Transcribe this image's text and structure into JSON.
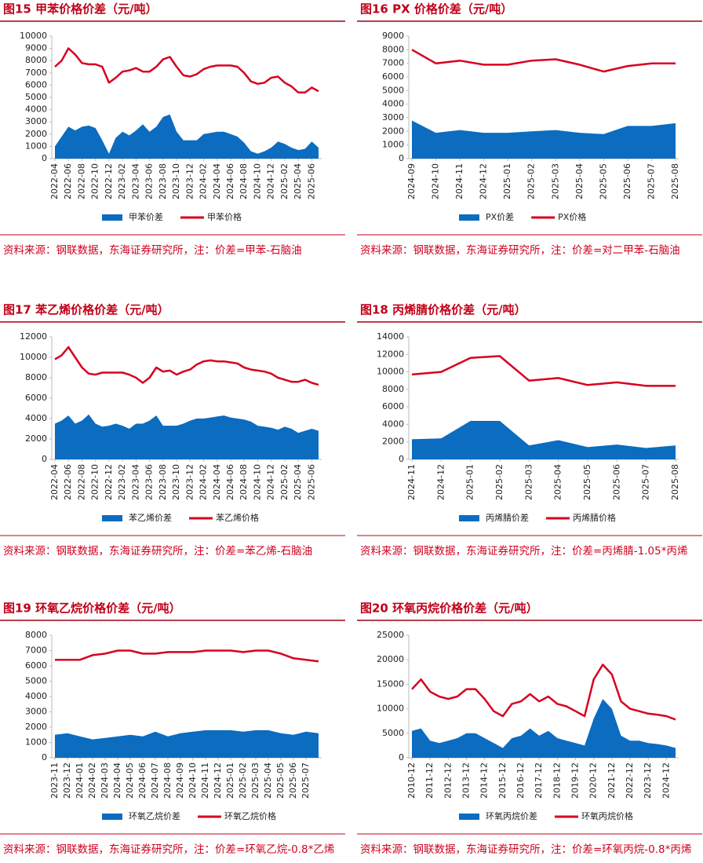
{
  "chart_data": [
    {
      "type": "line",
      "title": "图15  甲苯价格价差（元/吨）",
      "source": "资料来源：钢联数据，东海证券研究所，注：价差=甲苯-石脑油",
      "categories": [
        "2022-04",
        "2022-05",
        "2022-06",
        "2022-07",
        "2022-08",
        "2022-09",
        "2022-10",
        "2022-11",
        "2022-12",
        "2023-01",
        "2023-02",
        "2023-03",
        "2023-04",
        "2023-05",
        "2023-06",
        "2023-07",
        "2023-08",
        "2023-09",
        "2023-10",
        "2023-11",
        "2023-12",
        "2024-01",
        "2024-02",
        "2024-03",
        "2024-04",
        "2024-05",
        "2024-06",
        "2024-07",
        "2024-08",
        "2024-09",
        "2024-10",
        "2024-11",
        "2024-12",
        "2025-01",
        "2025-02",
        "2025-03",
        "2025-04",
        "2025-05",
        "2025-06",
        "2025-07"
      ],
      "xticks": [
        "2022-04",
        "2022-06",
        "2022-08",
        "2022-10",
        "2022-12",
        "2023-02",
        "2023-04",
        "2023-06",
        "2023-08",
        "2023-10",
        "2023-12",
        "2024-02",
        "2024-04",
        "2024-06",
        "2024-08",
        "2024-10",
        "2024-12",
        "2025-02",
        "2025-04",
        "2025-06"
      ],
      "series": [
        {
          "name": "甲苯价差",
          "color": "#0b6cc0",
          "fill": true,
          "values": [
            1000,
            1800,
            2600,
            2300,
            2600,
            2700,
            2500,
            1500,
            400,
            1700,
            2200,
            1900,
            2300,
            2800,
            2200,
            2600,
            3400,
            3600,
            2200,
            1500,
            1500,
            1500,
            2000,
            2100,
            2200,
            2200,
            2000,
            1800,
            1300,
            600,
            400,
            600,
            900,
            1400,
            1200,
            900,
            700,
            800,
            1400,
            900
          ]
        },
        {
          "name": "甲苯价格",
          "color": "#d7001f",
          "fill": false,
          "values": [
            7500,
            8000,
            9000,
            8500,
            7800,
            7700,
            7700,
            7500,
            6200,
            6600,
            7100,
            7200,
            7400,
            7100,
            7100,
            7500,
            8100,
            8300,
            7500,
            6800,
            6700,
            6900,
            7300,
            7500,
            7600,
            7600,
            7600,
            7500,
            7000,
            6300,
            6100,
            6200,
            6600,
            6700,
            6200,
            5900,
            5400,
            5400,
            5800,
            5500
          ]
        }
      ],
      "ylim": [
        0,
        10000
      ],
      "yticks": [
        0,
        1000,
        2000,
        3000,
        4000,
        5000,
        6000,
        7000,
        8000,
        9000,
        10000
      ]
    },
    {
      "type": "line",
      "title": "图16  PX 价格价差（元/吨）",
      "source": "资料来源：钢联数据，东海证券研究所，注：价差=对二甲苯-石脑油",
      "categories": [
        "2024-09",
        "2024-10",
        "2024-11",
        "2024-12",
        "2025-01",
        "2025-02",
        "2025-03",
        "2025-04",
        "2025-05",
        "2025-06",
        "2025-07",
        "2025-08"
      ],
      "xticks": [
        "2024-09",
        "2024-10",
        "2024-11",
        "2024-12",
        "2025-01",
        "2025-02",
        "2025-03",
        "2025-04",
        "2025-05",
        "2025-06",
        "2025-07",
        "2025-08"
      ],
      "series": [
        {
          "name": "PX价差",
          "color": "#0b6cc0",
          "fill": true,
          "values": [
            2800,
            1900,
            2100,
            1900,
            1900,
            2000,
            2100,
            1900,
            1800,
            2400,
            2400,
            2600
          ]
        },
        {
          "name": "PX价格",
          "color": "#d7001f",
          "fill": false,
          "values": [
            8000,
            7000,
            7200,
            6900,
            6900,
            7200,
            7300,
            6900,
            6400,
            6800,
            7000,
            7000
          ]
        }
      ],
      "ylim": [
        0,
        9000
      ],
      "yticks": [
        0,
        1000,
        2000,
        3000,
        4000,
        5000,
        6000,
        7000,
        8000,
        9000
      ]
    },
    {
      "type": "line",
      "title": "图17  苯乙烯价格价差（元/吨）",
      "source": "资料来源：钢联数据，东海证券研究所，注：价差=苯乙烯-石脑油",
      "categories": [
        "2022-04",
        "2022-05",
        "2022-06",
        "2022-07",
        "2022-08",
        "2022-09",
        "2022-10",
        "2022-11",
        "2022-12",
        "2023-01",
        "2023-02",
        "2023-03",
        "2023-04",
        "2023-05",
        "2023-06",
        "2023-07",
        "2023-08",
        "2023-09",
        "2023-10",
        "2023-11",
        "2023-12",
        "2024-01",
        "2024-02",
        "2024-03",
        "2024-04",
        "2024-05",
        "2024-06",
        "2024-07",
        "2024-08",
        "2024-09",
        "2024-10",
        "2024-11",
        "2024-12",
        "2025-01",
        "2025-02",
        "2025-03",
        "2025-04",
        "2025-05",
        "2025-06",
        "2025-07"
      ],
      "xticks": [
        "2022-04",
        "2022-06",
        "2022-08",
        "2022-10",
        "2022-12",
        "2023-02",
        "2023-04",
        "2023-06",
        "2023-08",
        "2023-10",
        "2023-12",
        "2024-02",
        "2024-04",
        "2024-06",
        "2024-08",
        "2024-10",
        "2024-12",
        "2025-02",
        "2025-04",
        "2025-06"
      ],
      "series": [
        {
          "name": "苯乙烯价差",
          "color": "#0b6cc0",
          "fill": true,
          "values": [
            3500,
            3800,
            4300,
            3500,
            3800,
            4400,
            3500,
            3200,
            3300,
            3500,
            3300,
            3000,
            3500,
            3500,
            3800,
            4300,
            3300,
            3300,
            3300,
            3500,
            3800,
            4000,
            4000,
            4100,
            4200,
            4300,
            4100,
            4000,
            3900,
            3700,
            3300,
            3200,
            3100,
            2900,
            3200,
            3000,
            2600,
            2800,
            3000,
            2800
          ]
        },
        {
          "name": "苯乙烯价格",
          "color": "#d7001f",
          "fill": false,
          "values": [
            9800,
            10200,
            11000,
            10000,
            9000,
            8400,
            8300,
            8500,
            8500,
            8500,
            8500,
            8300,
            8000,
            7500,
            8000,
            9000,
            8600,
            8700,
            8300,
            8600,
            8800,
            9300,
            9600,
            9700,
            9600,
            9600,
            9500,
            9400,
            9000,
            8800,
            8700,
            8600,
            8400,
            8000,
            7800,
            7600,
            7600,
            7800,
            7500,
            7300
          ]
        }
      ],
      "ylim": [
        0,
        12000
      ],
      "yticks": [
        0,
        2000,
        4000,
        6000,
        8000,
        10000,
        12000
      ]
    },
    {
      "type": "line",
      "title": "图18  丙烯腈价格价差（元/吨）",
      "source": "资料来源：钢联数据，东海证券研究所，注：价差=丙烯腈-1.05*丙烯",
      "categories": [
        "2024-11",
        "2024-12",
        "2025-01",
        "2025-02",
        "2025-03",
        "2025-04",
        "2025-05",
        "2025-06",
        "2025-07",
        "2025-08"
      ],
      "xticks": [
        "2024-11",
        "2024-12",
        "2025-01",
        "2025-02",
        "2025-03",
        "2025-04",
        "2025-05",
        "2025-06",
        "2025-07",
        "2025-08"
      ],
      "series": [
        {
          "name": "丙烯腈价差",
          "color": "#0b6cc0",
          "fill": true,
          "values": [
            2300,
            2400,
            4400,
            4400,
            1600,
            2200,
            1400,
            1700,
            1300,
            1600
          ]
        },
        {
          "name": "丙烯腈价格",
          "color": "#d7001f",
          "fill": false,
          "values": [
            9700,
            10000,
            11600,
            11800,
            9000,
            9300,
            8500,
            8800,
            8400,
            8400
          ]
        }
      ],
      "ylim": [
        0,
        14000
      ],
      "yticks": [
        0,
        2000,
        4000,
        6000,
        8000,
        10000,
        12000,
        14000
      ]
    },
    {
      "type": "line",
      "title": "图19  环氧乙烷价格价差（元/吨）",
      "source": "资料来源：钢联数据，东海证券研究所，注：价差=环氧乙烷-0.8*乙烯",
      "categories": [
        "2023-11",
        "2023-12",
        "2024-01",
        "2024-02",
        "2024-03",
        "2024-04",
        "2024-05",
        "2024-06",
        "2024-07",
        "2024-08",
        "2024-09",
        "2024-10",
        "2024-11",
        "2024-12",
        "2025-01",
        "2025-02",
        "2025-03",
        "2025-04",
        "2025-05",
        "2025-06",
        "2025-07",
        "2025-08"
      ],
      "xticks": [
        "2023-11",
        "2023-12",
        "2024-01",
        "2024-02",
        "2024-03",
        "2024-04",
        "2024-05",
        "2024-06",
        "2024-07",
        "2024-08",
        "2024-09",
        "2024-10",
        "2024-11",
        "2024-12",
        "2025-01",
        "2025-02",
        "2025-03",
        "2025-04",
        "2025-05",
        "2025-06",
        "2025-07"
      ],
      "series": [
        {
          "name": "环氧乙烷价差",
          "color": "#0b6cc0",
          "fill": true,
          "values": [
            1500,
            1600,
            1400,
            1200,
            1300,
            1400,
            1500,
            1400,
            1700,
            1400,
            1600,
            1700,
            1800,
            1800,
            1800,
            1700,
            1800,
            1800,
            1600,
            1500,
            1700,
            1600
          ]
        },
        {
          "name": "环氧乙烷价格",
          "color": "#d7001f",
          "fill": false,
          "values": [
            6400,
            6400,
            6400,
            6700,
            6800,
            7000,
            7000,
            6800,
            6800,
            6900,
            6900,
            6900,
            7000,
            7000,
            7000,
            6900,
            7000,
            7000,
            6800,
            6500,
            6400,
            6300
          ]
        }
      ],
      "ylim": [
        0,
        8000
      ],
      "yticks": [
        0,
        1000,
        2000,
        3000,
        4000,
        5000,
        6000,
        7000,
        8000
      ]
    },
    {
      "type": "line",
      "title": "图20  环氧丙烷价格价差（元/吨）",
      "source": "资料来源：钢联数据，东海证券研究所，注：价差=环氧丙烷-0.8*丙烯",
      "categories": [
        "2010-12",
        "2011-06",
        "2011-12",
        "2012-06",
        "2012-12",
        "2013-06",
        "2013-12",
        "2014-06",
        "2014-12",
        "2015-06",
        "2015-12",
        "2016-06",
        "2016-12",
        "2017-06",
        "2017-12",
        "2018-06",
        "2018-12",
        "2019-06",
        "2019-12",
        "2020-06",
        "2020-12",
        "2021-06",
        "2021-12",
        "2022-06",
        "2022-12",
        "2023-06",
        "2023-12",
        "2024-06",
        "2024-12",
        "2025-06"
      ],
      "xticks": [
        "2010-12",
        "2011-12",
        "2012-12",
        "2013-12",
        "2014-12",
        "2015-12",
        "2016-12",
        "2017-12",
        "2018-12",
        "2019-12",
        "2020-12",
        "2021-12",
        "2022-12",
        "2023-12",
        "2024-12"
      ],
      "series": [
        {
          "name": "环氧丙烷价差",
          "color": "#0b6cc0",
          "fill": true,
          "values": [
            5500,
            6000,
            3500,
            3000,
            3500,
            4000,
            5000,
            5000,
            4000,
            3000,
            2000,
            4000,
            4500,
            6000,
            4500,
            5500,
            4000,
            3500,
            3000,
            2500,
            8000,
            12000,
            10000,
            4500,
            3500,
            3500,
            3000,
            2800,
            2500,
            2000
          ]
        },
        {
          "name": "环氧丙烷价格",
          "color": "#d7001f",
          "fill": false,
          "values": [
            14000,
            16000,
            13500,
            12500,
            12000,
            12500,
            14000,
            14000,
            12000,
            9500,
            8500,
            11000,
            11500,
            13000,
            11500,
            12500,
            11000,
            10500,
            9500,
            8500,
            16000,
            19000,
            17000,
            11500,
            10000,
            9500,
            9000,
            8800,
            8500,
            7800
          ]
        }
      ],
      "ylim": [
        0,
        25000
      ],
      "yticks": [
        0,
        5000,
        10000,
        15000,
        20000,
        25000
      ]
    }
  ]
}
